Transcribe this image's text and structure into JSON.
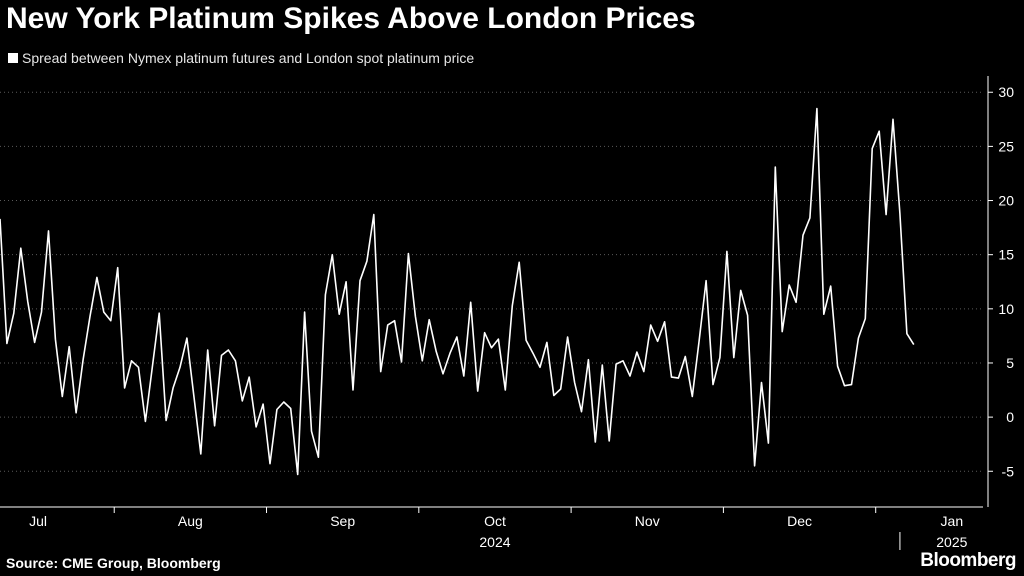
{
  "header": {
    "title": "New York Platinum Spikes Above London Prices"
  },
  "footer": {
    "source": "Source: CME Group, Bloomberg",
    "brand": "Bloomberg"
  },
  "colors": {
    "background": "#000000",
    "line": "#ffffff",
    "grid": "#5a5a5a",
    "text": "#ffffff"
  },
  "chart_data": {
    "type": "line",
    "title": "New York Platinum Spikes Above London Prices",
    "series": [
      {
        "name": "Spread between Nymex platinum futures and London spot platinum price",
        "values": [
          18.3,
          6.8,
          9.6,
          15.6,
          10.7,
          6.9,
          9.7,
          17.2,
          7.2,
          1.9,
          6.5,
          0.4,
          5.3,
          9.3,
          12.9,
          9.7,
          8.9,
          13.8,
          2.7,
          5.2,
          4.6,
          -0.4,
          4.6,
          9.6,
          -0.3,
          2.7,
          4.6,
          7.3,
          2.0,
          -3.4,
          6.2,
          -0.8,
          5.7,
          6.2,
          5.2,
          1.5,
          3.7,
          -0.9,
          1.2,
          -4.3,
          0.7,
          1.4,
          0.8,
          -5.3,
          9.7,
          -1.3,
          -3.7,
          11.3,
          15.0,
          9.5,
          12.5,
          2.5,
          12.6,
          14.4,
          18.7,
          4.2,
          8.5,
          8.9,
          5.1,
          15.1,
          9.3,
          5.2,
          9.0,
          6.1,
          4.0,
          5.9,
          7.4,
          3.8,
          10.6,
          2.4,
          7.8,
          6.4,
          7.2,
          2.5,
          10.3,
          14.3,
          7.1,
          5.9,
          4.6,
          6.9,
          2.0,
          2.6,
          7.4,
          3.2,
          0.5,
          5.3,
          -2.3,
          4.8,
          -2.2,
          4.9,
          5.2,
          3.8,
          6.0,
          4.2,
          8.5,
          7.0,
          8.8,
          3.7,
          3.6,
          5.6,
          1.9,
          7.1,
          12.6,
          3.0,
          5.5,
          15.3,
          5.5,
          11.7,
          9.4,
          -4.5,
          3.2,
          -2.4,
          23.1,
          7.9,
          12.2,
          10.6,
          16.8,
          18.4,
          28.5,
          9.5,
          12.1,
          4.7,
          2.9,
          3.0,
          7.3,
          9.1,
          24.8,
          26.4,
          18.7,
          27.5,
          18.8,
          7.7,
          6.7
        ]
      }
    ],
    "x_labels": [
      "Jul",
      "Aug",
      "Sep",
      "Oct",
      "Nov",
      "Dec",
      "Jan"
    ],
    "x_label_positions": [
      5.5,
      27.5,
      49.5,
      71.5,
      93.5,
      115.5,
      137.5
    ],
    "x_minor_ticks": [
      16.5,
      38.5,
      60.5,
      82.5,
      104.5,
      126.5
    ],
    "year_labels": [
      {
        "label": "2024",
        "at": 71.5
      },
      {
        "label": "2025",
        "at": 137.5
      }
    ],
    "year_divider_at": 130,
    "x_range": [
      0,
      142
    ],
    "y_ticks": [
      -5,
      0,
      5,
      10,
      15,
      20,
      25,
      30
    ],
    "ylim": [
      -8.3,
      31.5
    ],
    "grid": true,
    "legend": "top-left",
    "y_axis_side": "right",
    "xlabel": "",
    "ylabel": ""
  }
}
